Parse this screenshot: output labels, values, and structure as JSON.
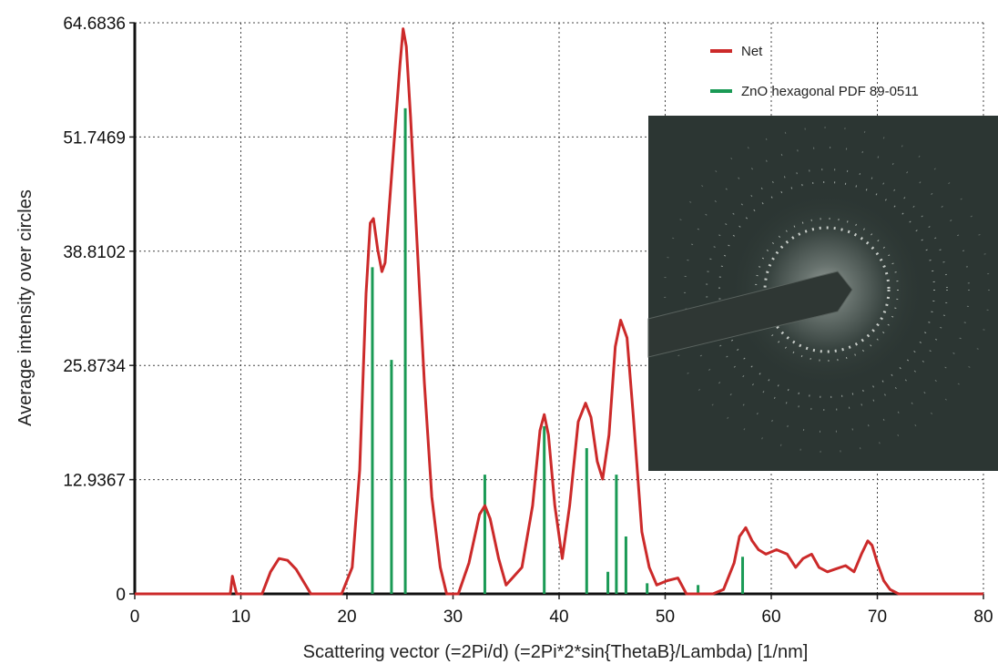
{
  "chart_data": {
    "type": "line",
    "xlabel": "Scattering vector (=2Pi/d) (=2Pi*2*sin{ThetaB}/Lambda) [1/nm]",
    "ylabel": "Average intensity over circles",
    "xlim": [
      0,
      80
    ],
    "ylim": [
      0,
      64.6836
    ],
    "x_ticks": [
      "0",
      "10",
      "20",
      "30",
      "40",
      "50",
      "60",
      "70",
      "80"
    ],
    "y_ticks": [
      "0",
      "12.9367",
      "25.8734",
      "38.8102",
      "51.7469",
      "64.6836"
    ],
    "grid": true,
    "legend_position": "top-right",
    "series": [
      {
        "name": "Net",
        "kind": "line",
        "color": "#cc2a2a",
        "x": [
          0,
          9.0,
          9.2,
          9.4,
          9.6,
          12.0,
          12.8,
          13.6,
          14.4,
          15.2,
          16.0,
          16.6,
          19.5,
          20.5,
          21.2,
          21.8,
          22.2,
          22.5,
          22.9,
          23.3,
          23.6,
          24.0,
          24.5,
          25.0,
          25.3,
          25.6,
          26.0,
          26.6,
          27.3,
          28.0,
          28.8,
          29.4,
          30.5,
          31.5,
          32.5,
          33.0,
          33.5,
          34.3,
          35.0,
          36.5,
          37.5,
          38.2,
          38.6,
          39.0,
          39.6,
          40.3,
          41.0,
          41.8,
          42.5,
          43.0,
          43.6,
          44.1,
          44.7,
          45.3,
          45.8,
          46.4,
          47.0,
          47.8,
          48.5,
          49.2,
          50.2,
          51.2,
          52.0,
          54.5,
          55.5,
          56.5,
          57.0,
          57.6,
          58.2,
          58.8,
          59.5,
          60.5,
          61.5,
          62.3,
          63.0,
          63.8,
          64.5,
          65.3,
          66.0,
          67.0,
          67.8,
          68.5,
          69.1,
          69.5,
          70.0,
          70.6,
          71.2,
          72.0,
          80.0
        ],
        "y": [
          0,
          0,
          2.0,
          1.0,
          0,
          0,
          2.5,
          4.0,
          3.8,
          2.8,
          1.2,
          0,
          0,
          3.0,
          14.0,
          34.0,
          42.0,
          42.5,
          39.0,
          36.5,
          37.5,
          44.0,
          52.0,
          60.0,
          64.0,
          62.0,
          54.0,
          40.0,
          24.0,
          11.0,
          3.0,
          0,
          0,
          3.5,
          9.0,
          10.0,
          8.5,
          4.0,
          1.0,
          3.0,
          10.0,
          18.5,
          20.3,
          18.0,
          10.0,
          4.0,
          10.0,
          19.5,
          21.6,
          20.0,
          15.0,
          13.0,
          18.0,
          28.0,
          31.0,
          29.0,
          20.0,
          7.0,
          3.0,
          1.0,
          1.5,
          1.8,
          0,
          0,
          0.5,
          3.5,
          6.5,
          7.5,
          6.0,
          5.0,
          4.5,
          5.0,
          4.5,
          3.0,
          4.0,
          4.5,
          3.0,
          2.5,
          2.8,
          3.2,
          2.5,
          4.5,
          6.0,
          5.5,
          3.5,
          1.5,
          0.5,
          0,
          0
        ]
      },
      {
        "name": "ZnO hexagonal PDF 89-0511",
        "kind": "sticks",
        "color": "#1a9a55",
        "x": [
          22.4,
          24.2,
          25.5,
          33.0,
          38.6,
          42.6,
          44.6,
          45.4,
          46.3,
          48.3,
          53.1,
          57.3
        ],
        "y": [
          37.0,
          26.5,
          55.0,
          13.5,
          19.0,
          16.5,
          2.5,
          13.5,
          6.5,
          1.2,
          1.0,
          4.2
        ]
      }
    ]
  }
}
